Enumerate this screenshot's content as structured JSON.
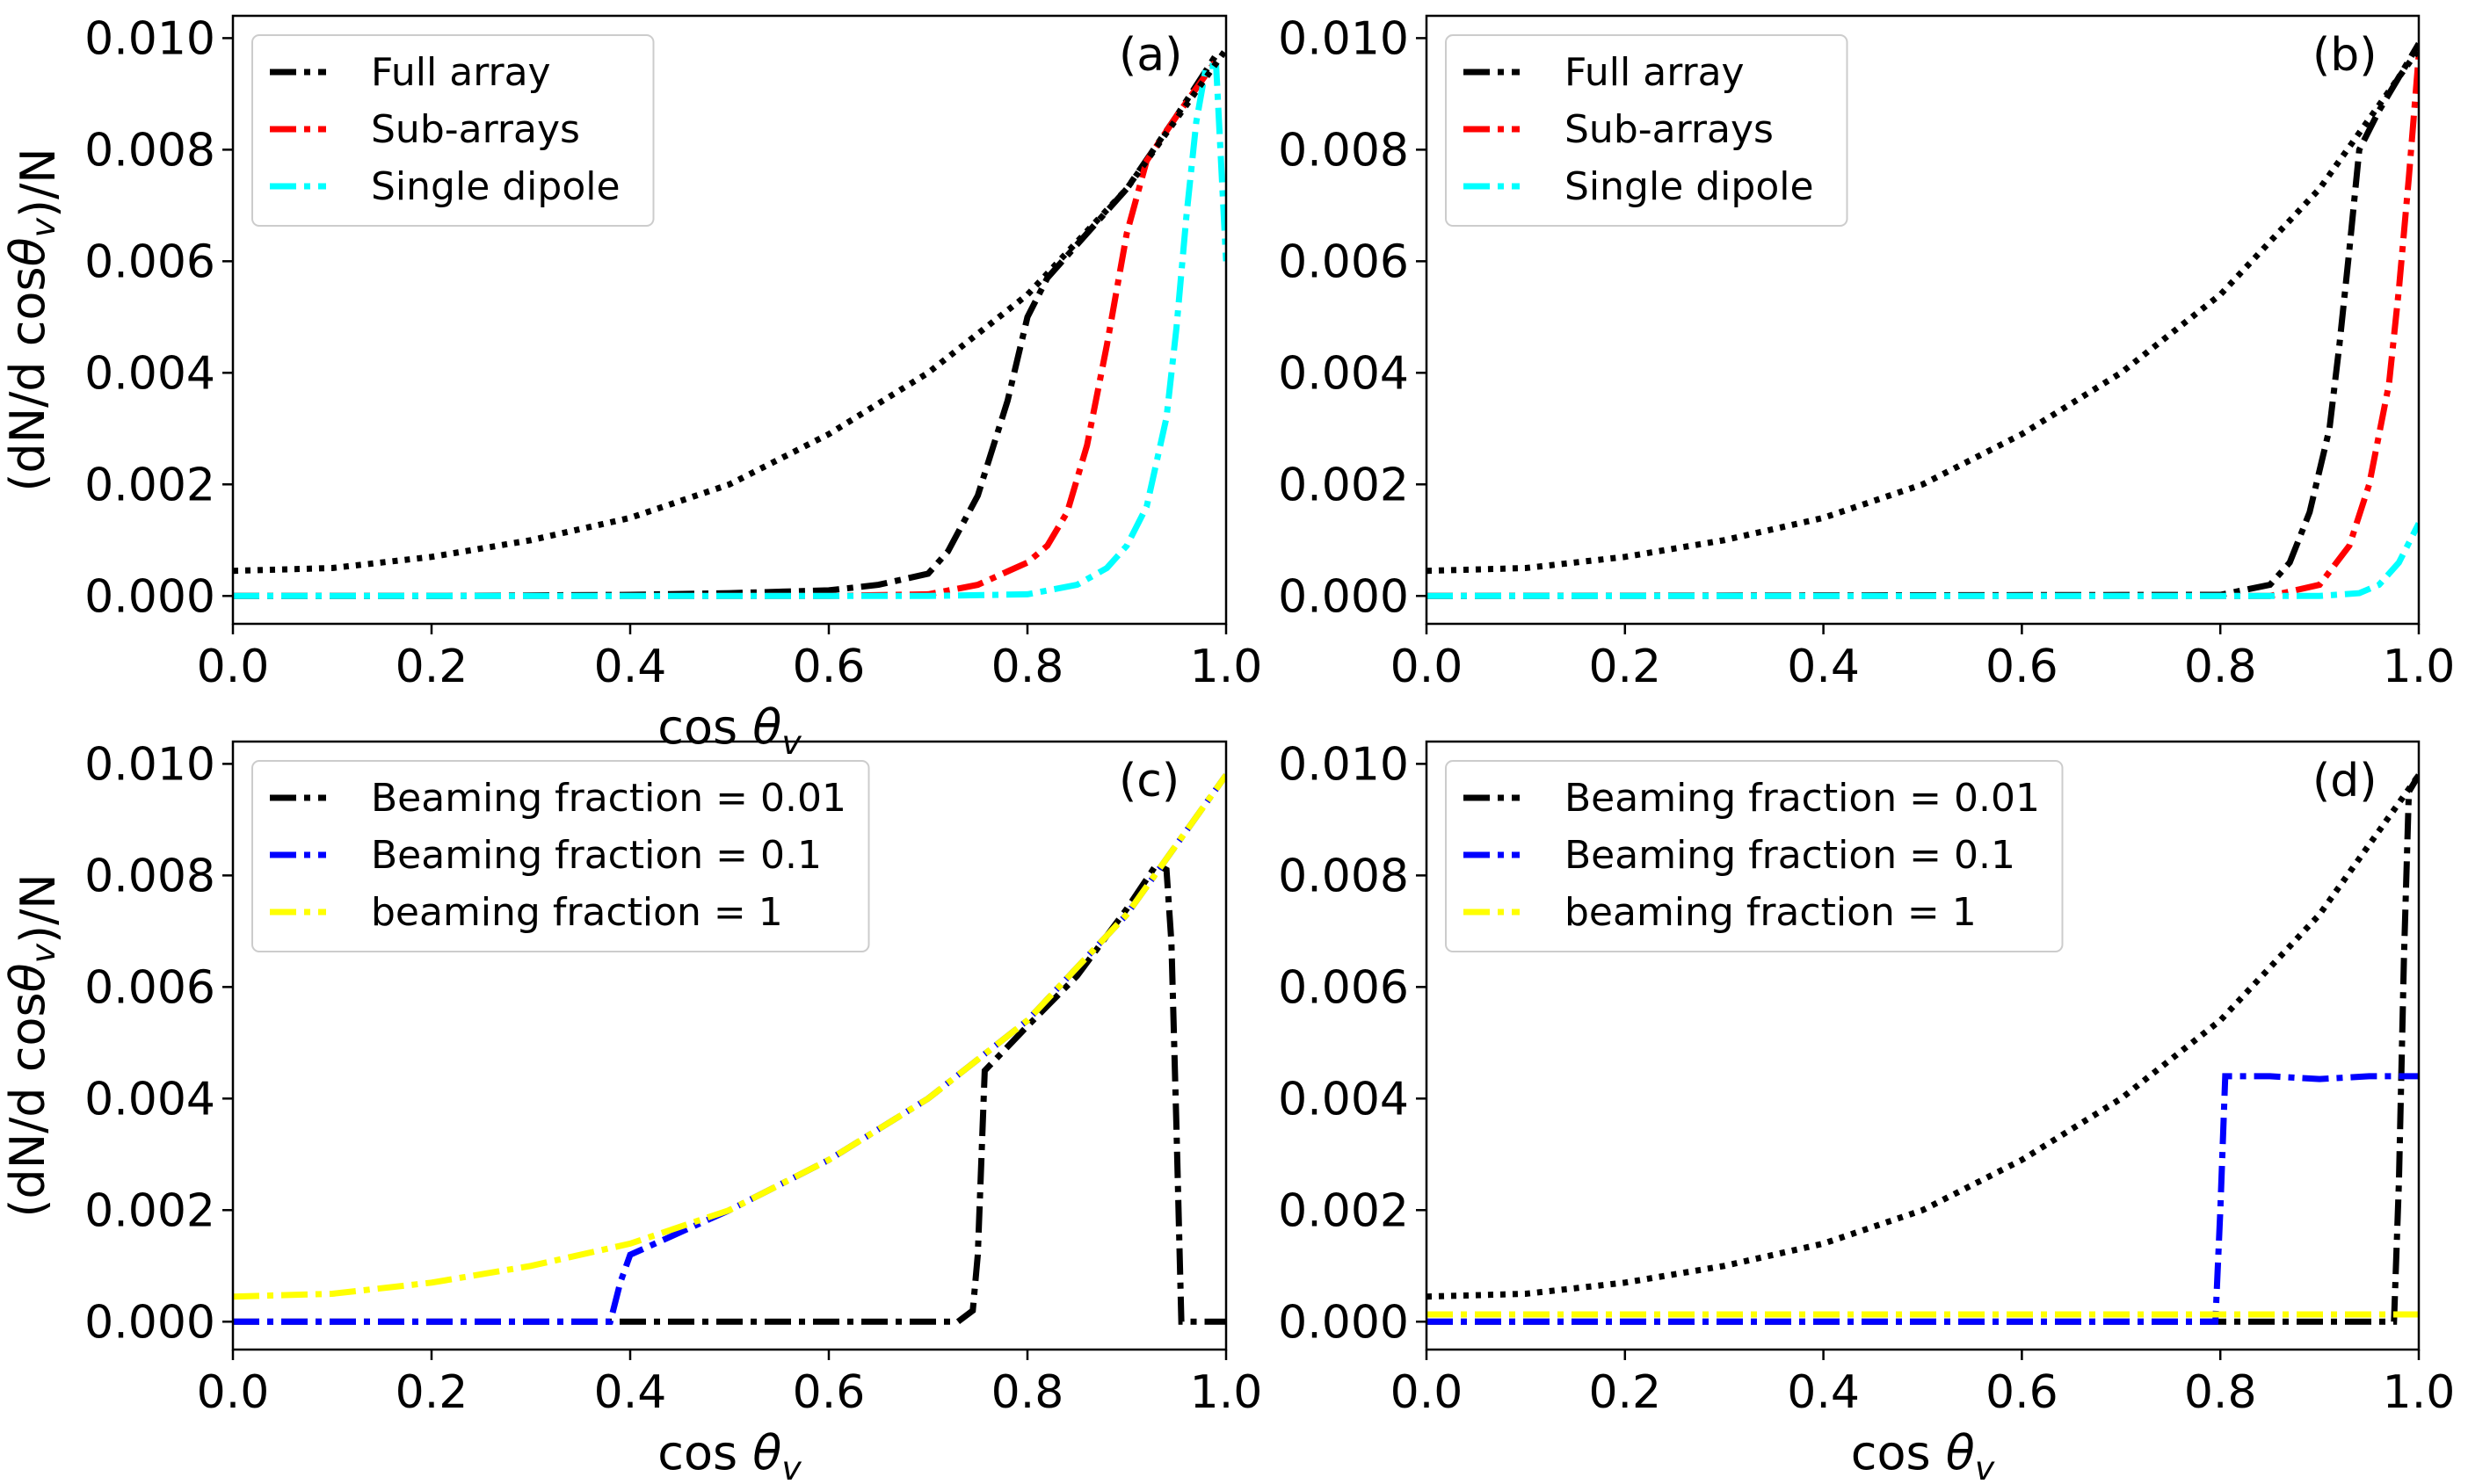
{
  "chart_data": [
    {
      "panel": "(a)",
      "type": "line",
      "xlabel": "cos θ_v",
      "ylabel": "(dN/d cosθ_v)/N",
      "xlim": [
        0.0,
        1.0
      ],
      "ylim": [
        -0.0005,
        0.0104
      ],
      "xticks": [
        "0.0",
        "0.2",
        "0.4",
        "0.6",
        "0.8",
        "1.0"
      ],
      "yticks": [
        "0.000",
        "0.002",
        "0.004",
        "0.006",
        "0.008",
        "0.010"
      ],
      "legend_position": "top-left",
      "series": [
        {
          "name": "Full array",
          "color": "#000000",
          "style": "dashdot",
          "in_legend": true,
          "x": [
            0.0,
            0.2,
            0.4,
            0.5,
            0.6,
            0.65,
            0.7,
            0.72,
            0.75,
            0.78,
            0.8,
            0.82,
            0.85,
            0.9,
            0.95,
            0.99
          ],
          "y": [
            0.0,
            0.0,
            2e-05,
            5e-05,
            0.0001,
            0.0002,
            0.0004,
            0.0008,
            0.0018,
            0.0035,
            0.005,
            0.0057,
            0.0063,
            0.0073,
            0.0086,
            0.0097
          ]
        },
        {
          "name": "Sub-arrays",
          "color": "#ff0000",
          "style": "dashdot",
          "in_legend": true,
          "x": [
            0.0,
            0.6,
            0.7,
            0.75,
            0.8,
            0.82,
            0.84,
            0.86,
            0.88,
            0.9,
            0.92,
            0.95,
            0.99
          ],
          "y": [
            0.0,
            0.0,
            3e-05,
            0.0002,
            0.0006,
            0.0009,
            0.0015,
            0.0027,
            0.0045,
            0.0065,
            0.0078,
            0.0086,
            0.0096
          ]
        },
        {
          "name": "Single dipole",
          "color": "#00ffff",
          "style": "dashdot",
          "in_legend": true,
          "x": [
            0.0,
            0.7,
            0.8,
            0.85,
            0.88,
            0.9,
            0.92,
            0.94,
            0.95,
            0.96,
            0.97,
            0.98,
            0.99,
            1.0
          ],
          "y": [
            0.0,
            0.0,
            3e-05,
            0.0002,
            0.0005,
            0.0009,
            0.0016,
            0.0032,
            0.0048,
            0.0068,
            0.0085,
            0.0095,
            0.0095,
            0.006
          ]
        },
        {
          "name": "",
          "color": "#000000",
          "style": "dotted",
          "in_legend": false,
          "x": [
            0.0,
            0.1,
            0.2,
            0.3,
            0.4,
            0.5,
            0.6,
            0.7,
            0.8,
            0.9,
            1.0
          ],
          "y": [
            0.00045,
            0.0005,
            0.0007,
            0.001,
            0.0014,
            0.002,
            0.0029,
            0.004,
            0.0054,
            0.0073,
            0.0098
          ]
        }
      ]
    },
    {
      "panel": "(b)",
      "type": "line",
      "xlabel": "",
      "ylabel": "",
      "xlim": [
        0.0,
        1.0
      ],
      "ylim": [
        -0.0005,
        0.0104
      ],
      "xticks": [
        "0.0",
        "0.2",
        "0.4",
        "0.6",
        "0.8",
        "1.0"
      ],
      "yticks": [
        "0.000",
        "0.002",
        "0.004",
        "0.006",
        "0.008",
        "0.010"
      ],
      "legend_position": "top-left",
      "series": [
        {
          "name": "Full array",
          "color": "#000000",
          "style": "dashdot",
          "in_legend": true,
          "x": [
            0.0,
            0.8,
            0.85,
            0.87,
            0.89,
            0.91,
            0.92,
            0.93,
            0.94,
            0.96,
            0.98,
            1.0
          ],
          "y": [
            0.0,
            2e-05,
            0.0002,
            0.0006,
            0.0015,
            0.003,
            0.0045,
            0.0062,
            0.008,
            0.0087,
            0.0093,
            0.0099
          ]
        },
        {
          "name": "Sub-arrays",
          "color": "#ff0000",
          "style": "dashdot",
          "in_legend": true,
          "x": [
            0.0,
            0.85,
            0.9,
            0.93,
            0.95,
            0.97,
            0.98,
            0.99,
            1.0
          ],
          "y": [
            0.0,
            0.0,
            0.0002,
            0.0009,
            0.002,
            0.0038,
            0.0055,
            0.0075,
            0.0097
          ]
        },
        {
          "name": "Single dipole",
          "color": "#00ffff",
          "style": "dashdot",
          "in_legend": true,
          "x": [
            0.0,
            0.9,
            0.94,
            0.96,
            0.98,
            1.0
          ],
          "y": [
            0.0,
            0.0,
            5e-05,
            0.0002,
            0.0006,
            0.0013
          ]
        },
        {
          "name": "",
          "color": "#000000",
          "style": "dotted",
          "in_legend": false,
          "x": [
            0.0,
            0.1,
            0.2,
            0.3,
            0.4,
            0.5,
            0.6,
            0.7,
            0.8,
            0.9,
            1.0
          ],
          "y": [
            0.00045,
            0.0005,
            0.0007,
            0.001,
            0.0014,
            0.002,
            0.0029,
            0.004,
            0.0054,
            0.0073,
            0.0098
          ]
        }
      ]
    },
    {
      "panel": "(c)",
      "type": "line",
      "xlabel": "cos θ_v",
      "ylabel": "(dN/d cosθ_v)/N",
      "xlim": [
        0.0,
        1.0
      ],
      "ylim": [
        -0.0005,
        0.0104
      ],
      "xticks": [
        "0.0",
        "0.2",
        "0.4",
        "0.6",
        "0.8",
        "1.0"
      ],
      "yticks": [
        "0.000",
        "0.002",
        "0.004",
        "0.006",
        "0.008",
        "0.010"
      ],
      "legend_position": "top-left",
      "series": [
        {
          "name": "Beaming fraction = 0.01",
          "color": "#000000",
          "style": "dashdot",
          "in_legend": true,
          "x": [
            0.0,
            0.73,
            0.745,
            0.75,
            0.757,
            0.8,
            0.85,
            0.9,
            0.93,
            0.94,
            0.945,
            0.95,
            0.955,
            1.0
          ],
          "y": [
            0.0,
            0.0,
            0.0002,
            0.0012,
            0.0045,
            0.0053,
            0.0062,
            0.0074,
            0.0082,
            0.0081,
            0.0068,
            0.0035,
            0.0,
            0.0
          ]
        },
        {
          "name": "Beaming fraction = 0.1",
          "color": "#0000ff",
          "style": "dashdot",
          "in_legend": true,
          "x": [
            0.0,
            0.38,
            0.39,
            0.4,
            0.5,
            0.6,
            0.7,
            0.8,
            0.9,
            1.0
          ],
          "y": [
            0.0,
            0.0,
            0.0007,
            0.0012,
            0.002,
            0.0029,
            0.004,
            0.0054,
            0.0073,
            0.0098
          ]
        },
        {
          "name": "beaming fraction = 1",
          "color": "#ffff00",
          "style": "dashdot",
          "in_legend": true,
          "x": [
            0.0,
            0.1,
            0.2,
            0.3,
            0.4,
            0.5,
            0.6,
            0.7,
            0.8,
            0.9,
            1.0
          ],
          "y": [
            0.00045,
            0.0005,
            0.0007,
            0.001,
            0.0014,
            0.002,
            0.0029,
            0.004,
            0.0054,
            0.0073,
            0.0098
          ]
        }
      ]
    },
    {
      "panel": "(d)",
      "type": "line",
      "xlabel": "cos θ_v",
      "ylabel": "",
      "xlim": [
        0.0,
        1.0
      ],
      "ylim": [
        -0.0005,
        0.0104
      ],
      "xticks": [
        "0.0",
        "0.2",
        "0.4",
        "0.6",
        "0.8",
        "1.0"
      ],
      "yticks": [
        "0.000",
        "0.002",
        "0.004",
        "0.006",
        "0.008",
        "0.010"
      ],
      "legend_position": "top-left",
      "series": [
        {
          "name": "Beaming fraction = 0.01",
          "color": "#000000",
          "style": "dashdot",
          "in_legend": true,
          "x": [
            0.0,
            0.975,
            0.98,
            0.985,
            0.99,
            1.0
          ],
          "y": [
            0.0,
            0.0,
            0.0025,
            0.0065,
            0.0095,
            0.0098
          ]
        },
        {
          "name": "Beaming fraction = 0.1",
          "color": "#0000ff",
          "style": "dashdot",
          "in_legend": true,
          "x": [
            0.0,
            0.795,
            0.8,
            0.805,
            0.85,
            0.9,
            0.95,
            1.0
          ],
          "y": [
            0.0,
            0.0,
            0.002,
            0.0044,
            0.0044,
            0.00435,
            0.0044,
            0.0044
          ]
        },
        {
          "name": "beaming fraction = 1",
          "color": "#ffff00",
          "style": "dashdot",
          "in_legend": true,
          "x": [
            0.0,
            1.0
          ],
          "y": [
            0.00013,
            0.00013
          ]
        },
        {
          "name": "",
          "color": "#000000",
          "style": "dotted",
          "in_legend": false,
          "x": [
            0.0,
            0.1,
            0.2,
            0.3,
            0.4,
            0.5,
            0.6,
            0.7,
            0.8,
            0.9,
            1.0
          ],
          "y": [
            0.00045,
            0.0005,
            0.0007,
            0.001,
            0.0014,
            0.002,
            0.0029,
            0.004,
            0.0054,
            0.0073,
            0.0098
          ]
        }
      ]
    }
  ]
}
